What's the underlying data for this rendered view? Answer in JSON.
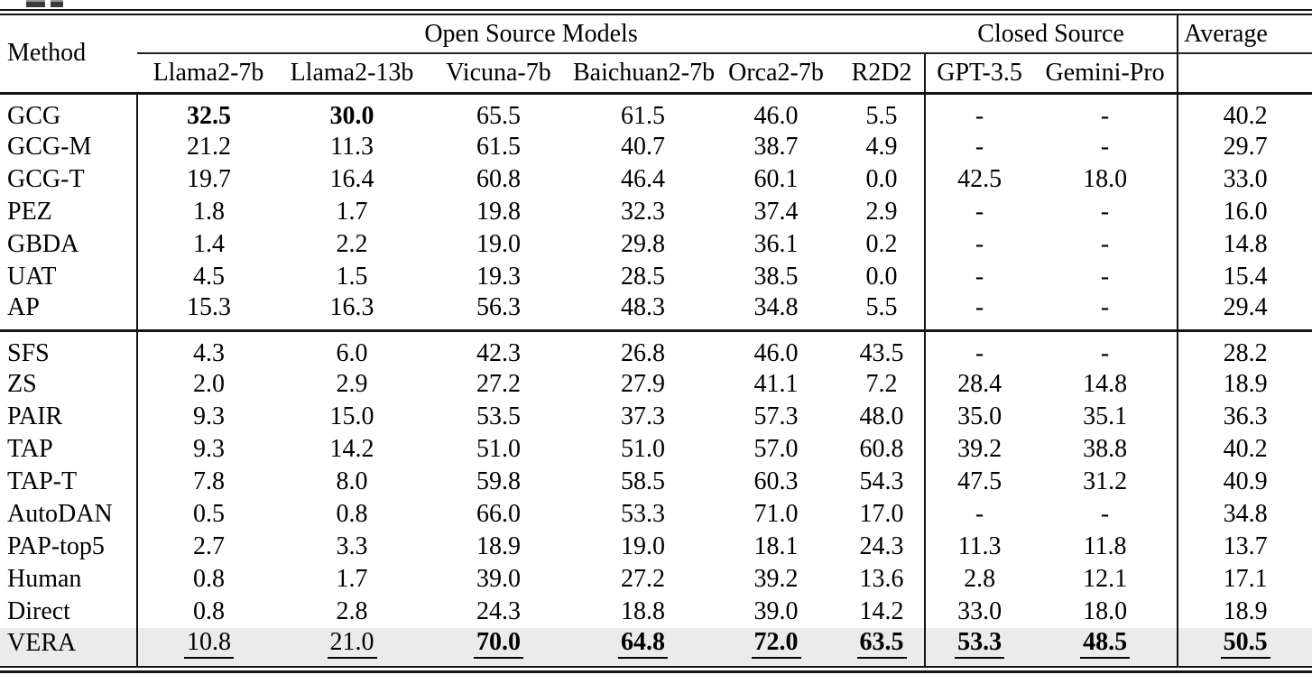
{
  "colors": {
    "background": "#ffffff",
    "text": "#000000",
    "rule": "#141414",
    "highlight_row_bg": "#ebebeb"
  },
  "header": {
    "method_label": "Method",
    "groups": [
      {
        "label": "Open Source Models",
        "span": 6
      },
      {
        "label": "Closed Source",
        "span": 2
      },
      {
        "label": "Average",
        "span": 1
      }
    ],
    "models": [
      "Llama2-7b",
      "Llama2-13b",
      "Vicuna-7b",
      "Baichuan2-7b",
      "Orca2-7b",
      "R2D2",
      "GPT-3.5",
      "Gemini-Pro"
    ]
  },
  "sections": [
    {
      "rows": [
        {
          "method": "GCG",
          "values": [
            "32.5",
            "30.0",
            "65.5",
            "61.5",
            "46.0",
            "5.5",
            "-",
            "-",
            "40.2"
          ],
          "bold": [
            0,
            1
          ]
        },
        {
          "method": "GCG-M",
          "values": [
            "21.2",
            "11.3",
            "61.5",
            "40.7",
            "38.7",
            "4.9",
            "-",
            "-",
            "29.7"
          ]
        },
        {
          "method": "GCG-T",
          "values": [
            "19.7",
            "16.4",
            "60.8",
            "46.4",
            "60.1",
            "0.0",
            "42.5",
            "18.0",
            "33.0"
          ]
        },
        {
          "method": "PEZ",
          "values": [
            "1.8",
            "1.7",
            "19.8",
            "32.3",
            "37.4",
            "2.9",
            "-",
            "-",
            "16.0"
          ]
        },
        {
          "method": "GBDA",
          "values": [
            "1.4",
            "2.2",
            "19.0",
            "29.8",
            "36.1",
            "0.2",
            "-",
            "-",
            "14.8"
          ]
        },
        {
          "method": "UAT",
          "values": [
            "4.5",
            "1.5",
            "19.3",
            "28.5",
            "38.5",
            "0.0",
            "-",
            "-",
            "15.4"
          ]
        },
        {
          "method": "AP",
          "values": [
            "15.3",
            "16.3",
            "56.3",
            "48.3",
            "34.8",
            "5.5",
            "-",
            "-",
            "29.4"
          ]
        }
      ]
    },
    {
      "rows": [
        {
          "method": "SFS",
          "values": [
            "4.3",
            "6.0",
            "42.3",
            "26.8",
            "46.0",
            "43.5",
            "-",
            "-",
            "28.2"
          ]
        },
        {
          "method": "ZS",
          "values": [
            "2.0",
            "2.9",
            "27.2",
            "27.9",
            "41.1",
            "7.2",
            "28.4",
            "14.8",
            "18.9"
          ]
        },
        {
          "method": "PAIR",
          "values": [
            "9.3",
            "15.0",
            "53.5",
            "37.3",
            "57.3",
            "48.0",
            "35.0",
            "35.1",
            "36.3"
          ]
        },
        {
          "method": "TAP",
          "values": [
            "9.3",
            "14.2",
            "51.0",
            "51.0",
            "57.0",
            "60.8",
            "39.2",
            "38.8",
            "40.2"
          ]
        },
        {
          "method": "TAP-T",
          "values": [
            "7.8",
            "8.0",
            "59.8",
            "58.5",
            "60.3",
            "54.3",
            "47.5",
            "31.2",
            "40.9"
          ]
        },
        {
          "method": "AutoDAN",
          "values": [
            "0.5",
            "0.8",
            "66.0",
            "53.3",
            "71.0",
            "17.0",
            "-",
            "-",
            "34.8"
          ]
        },
        {
          "method": "PAP-top5",
          "values": [
            "2.7",
            "3.3",
            "18.9",
            "19.0",
            "18.1",
            "24.3",
            "11.3",
            "11.8",
            "13.7"
          ]
        },
        {
          "method": "Human",
          "values": [
            "0.8",
            "1.7",
            "39.0",
            "27.2",
            "39.2",
            "13.6",
            "2.8",
            "12.1",
            "17.1"
          ]
        },
        {
          "method": "Direct",
          "values": [
            "0.8",
            "2.8",
            "24.3",
            "18.8",
            "39.0",
            "14.2",
            "33.0",
            "18.0",
            "18.9"
          ]
        },
        {
          "method": "VERA",
          "values": [
            "10.8",
            "21.0",
            "70.0",
            "64.8",
            "72.0",
            "63.5",
            "53.3",
            "48.5",
            "50.5"
          ],
          "bold": [
            2,
            3,
            4,
            5,
            6,
            7,
            8
          ],
          "underline": [
            0,
            1,
            2,
            3,
            4,
            5,
            6,
            7,
            8
          ],
          "highlight": true
        }
      ]
    }
  ]
}
